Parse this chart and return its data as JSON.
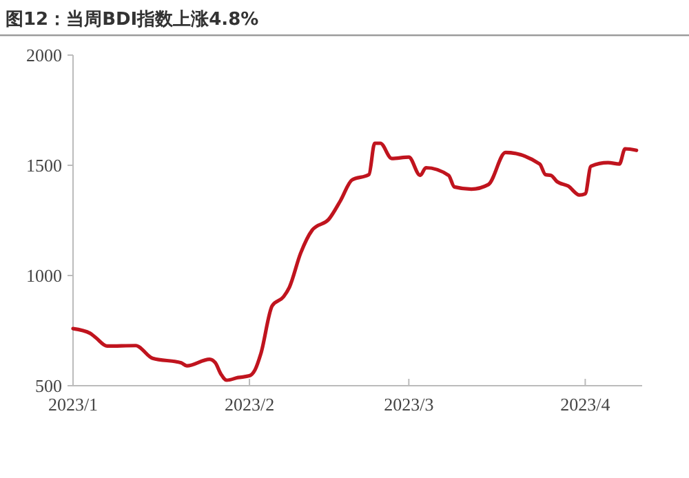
{
  "chart_data": {
    "type": "line",
    "title": "图12：当周BDI指数上涨4.8%",
    "x": [
      "2023-01-01",
      "2023-01-04",
      "2023-01-05",
      "2023-01-07",
      "2023-01-12",
      "2023-01-15",
      "2023-01-20",
      "2023-01-21",
      "2023-01-25",
      "2023-01-26",
      "2023-01-27",
      "2023-01-28",
      "2023-01-30",
      "2023-02-01",
      "2023-02-02",
      "2023-02-03",
      "2023-02-05",
      "2023-02-07",
      "2023-02-08",
      "2023-02-10",
      "2023-02-12",
      "2023-02-15",
      "2023-02-17",
      "2023-02-19",
      "2023-02-22",
      "2023-02-23",
      "2023-02-24",
      "2023-02-26",
      "2023-03-01",
      "2023-03-03",
      "2023-03-04",
      "2023-03-08",
      "2023-03-09",
      "2023-03-12",
      "2023-03-15",
      "2023-03-18",
      "2023-03-24",
      "2023-03-25",
      "2023-03-26",
      "2023-03-27",
      "2023-03-29",
      "2023-03-31",
      "2023-04-01",
      "2023-04-02",
      "2023-04-05",
      "2023-04-07",
      "2023-04-08",
      "2023-04-10"
    ],
    "series": [
      {
        "color": "#c0141e",
        "values": [
          759,
          738,
          718,
          680,
          682,
          624,
          604,
          590,
          620,
          604,
          552,
          525,
          537,
          545,
          573,
          645,
          863,
          904,
          946,
          1102,
          1205,
          1257,
          1340,
          1433,
          1458,
          1600,
          1600,
          1531,
          1537,
          1454,
          1489,
          1454,
          1402,
          1392,
          1413,
          1558,
          1506,
          1458,
          1454,
          1427,
          1406,
          1365,
          1371,
          1496,
          1512,
          1506,
          1575,
          1568
        ]
      }
    ],
    "xlim": [
      "2023-01-01",
      "2023-04-11"
    ],
    "xticks": [
      {
        "value": "2023-01-01",
        "label": "2023/1"
      },
      {
        "value": "2023-02-01",
        "label": "2023/2"
      },
      {
        "value": "2023-03-01",
        "label": "2023/3"
      },
      {
        "value": "2023-04-01",
        "label": "2023/4"
      }
    ],
    "ylim": [
      500,
      2000
    ],
    "yticks": [
      500,
      1000,
      1500,
      2000
    ],
    "grid": false,
    "marker": "none",
    "line_style": "solid"
  }
}
